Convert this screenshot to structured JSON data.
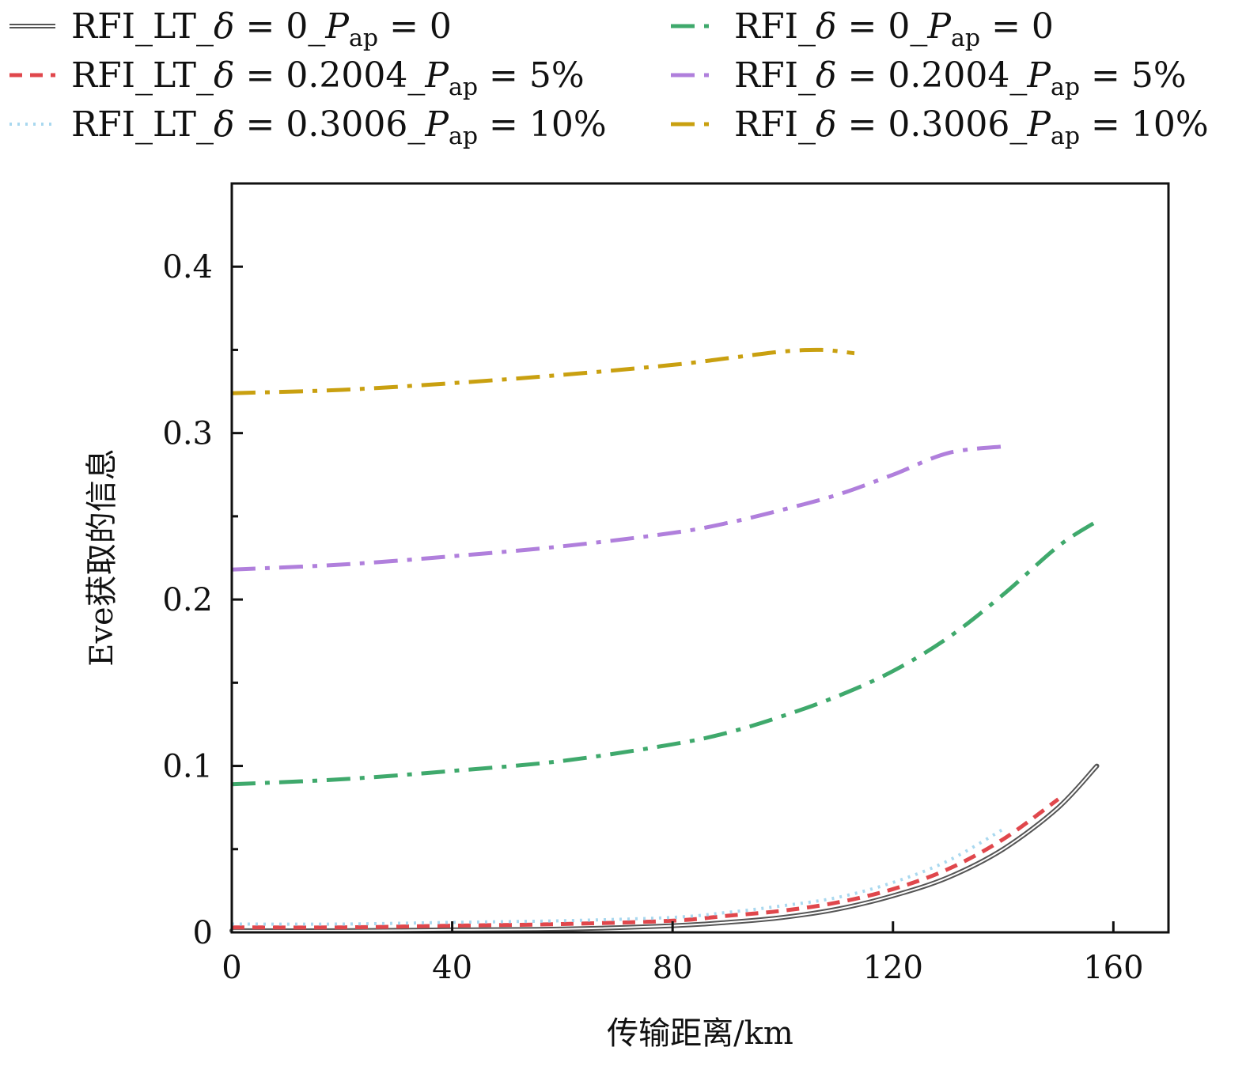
{
  "chart_data": {
    "type": "line",
    "title": "",
    "xlabel": "传输距离/km",
    "ylabel": "Eve获取的信息",
    "xlim": [
      0,
      170
    ],
    "ylim": [
      0,
      0.45
    ],
    "xticks": [
      0,
      40,
      80,
      120,
      160
    ],
    "xtick_labels": [
      "0",
      "40",
      "80",
      "120",
      "160"
    ],
    "yticks": [
      0,
      0.1,
      0.2,
      0.3,
      0.4
    ],
    "ytick_labels": [
      "0",
      "0.1",
      "0.2",
      "0.3",
      "0.4"
    ],
    "y_minor_ticks": [
      0.05,
      0.15,
      0.25,
      0.35
    ],
    "legend_position": "top",
    "series": [
      {
        "name": "RFI_LT_δ = 0_Pap = 0",
        "legend": {
          "prefix": "RFI_LT_",
          "delta": "0",
          "pap": "0"
        },
        "color": "#555555",
        "dash": "solid",
        "double": true,
        "x": [
          0,
          20,
          40,
          60,
          80,
          90,
          100,
          110,
          120,
          130,
          140,
          150,
          157
        ],
        "y": [
          0.001,
          0.001,
          0.0015,
          0.002,
          0.004,
          0.006,
          0.009,
          0.014,
          0.022,
          0.033,
          0.05,
          0.075,
          0.1
        ]
      },
      {
        "name": "RFI_LT_δ = 0.2004_Pap = 5%",
        "legend": {
          "prefix": "RFI_LT_",
          "delta": "0.2004",
          "pap": "5%"
        },
        "color": "#e0474c",
        "dash": "dashed",
        "double": false,
        "x": [
          0,
          20,
          40,
          60,
          80,
          90,
          100,
          110,
          120,
          130,
          140,
          150
        ],
        "y": [
          0.003,
          0.003,
          0.004,
          0.005,
          0.007,
          0.01,
          0.013,
          0.018,
          0.026,
          0.038,
          0.056,
          0.08
        ]
      },
      {
        "name": "RFI_LT_δ = 0.3006_Pap = 10%",
        "legend": {
          "prefix": "RFI_LT_",
          "delta": "0.3006",
          "pap": "10%"
        },
        "color": "#a9d8ef",
        "dash": "dotted",
        "double": false,
        "x": [
          0,
          20,
          40,
          60,
          80,
          90,
          100,
          110,
          120,
          130,
          140
        ],
        "y": [
          0.005,
          0.005,
          0.006,
          0.007,
          0.009,
          0.012,
          0.016,
          0.021,
          0.03,
          0.043,
          0.062
        ]
      },
      {
        "name": "RFI_δ = 0_Pap = 0",
        "legend": {
          "prefix": "RFI_",
          "delta": "0",
          "pap": "0"
        },
        "color": "#3fa96c",
        "dash": "dashdot",
        "double": false,
        "x": [
          0,
          20,
          40,
          60,
          80,
          90,
          100,
          110,
          120,
          130,
          140,
          150,
          157
        ],
        "y": [
          0.089,
          0.092,
          0.097,
          0.103,
          0.113,
          0.12,
          0.13,
          0.142,
          0.157,
          0.177,
          0.203,
          0.232,
          0.247
        ]
      },
      {
        "name": "RFI_δ = 0.2004_Pap = 5%",
        "legend": {
          "prefix": "RFI_",
          "delta": "0.2004",
          "pap": "5%"
        },
        "color": "#b07fdc",
        "dash": "dashdot",
        "double": false,
        "x": [
          0,
          20,
          40,
          60,
          80,
          90,
          100,
          110,
          120,
          130,
          140
        ],
        "y": [
          0.218,
          0.221,
          0.226,
          0.232,
          0.24,
          0.246,
          0.254,
          0.263,
          0.275,
          0.288,
          0.292
        ]
      },
      {
        "name": "RFI_δ = 0.3006_Pap = 10%",
        "legend": {
          "prefix": "RFI_",
          "delta": "0.3006",
          "pap": "10%"
        },
        "color": "#c9a010",
        "dash": "dashdot",
        "double": false,
        "x": [
          0,
          20,
          40,
          60,
          80,
          90,
          100,
          107,
          113
        ],
        "y": [
          0.324,
          0.326,
          0.33,
          0.335,
          0.341,
          0.345,
          0.349,
          0.35,
          0.348
        ]
      }
    ]
  }
}
